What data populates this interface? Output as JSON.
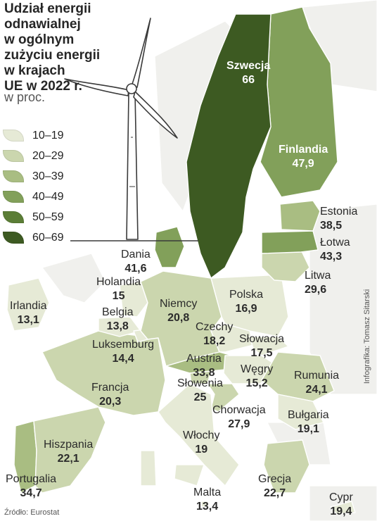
{
  "title": "Udział energii odnawialnej\nw ogólnym\nzużyciu energii\nw krajach\nUE w 2022 r.",
  "subtitle": "w proc.",
  "legend": [
    {
      "label": "10–19",
      "color": "#e6ead6"
    },
    {
      "label": "20–29",
      "color": "#cbd6ae"
    },
    {
      "label": "30–39",
      "color": "#a9bd82"
    },
    {
      "label": "40–49",
      "color": "#82a05a"
    },
    {
      "label": "50–59",
      "color": "#5b7d36"
    },
    {
      "label": "60–69",
      "color": "#3d5a22"
    }
  ],
  "countries": [
    {
      "name": "Szwecja",
      "value": "66"
    },
    {
      "name": "Finlandia",
      "value": "47,9"
    },
    {
      "name": "Estonia",
      "value": "38,5"
    },
    {
      "name": "Łotwa",
      "value": "43,3"
    },
    {
      "name": "Litwa",
      "value": "29,6"
    },
    {
      "name": "Dania",
      "value": "41,6"
    },
    {
      "name": "Holandia",
      "value": "15"
    },
    {
      "name": "Irlandia",
      "value": "13,1"
    },
    {
      "name": "Belgia",
      "value": "13,8"
    },
    {
      "name": "Luksemburg",
      "value": "14,4"
    },
    {
      "name": "Niemcy",
      "value": "20,8"
    },
    {
      "name": "Polska",
      "value": "16,9"
    },
    {
      "name": "Czechy",
      "value": "18,2"
    },
    {
      "name": "Słowacja",
      "value": "17,5"
    },
    {
      "name": "Austria",
      "value": "33,8"
    },
    {
      "name": "Słowenia",
      "value": "25"
    },
    {
      "name": "Węgry",
      "value": "15,2"
    },
    {
      "name": "Rumunia",
      "value": "24,1"
    },
    {
      "name": "Francja",
      "value": "20,3"
    },
    {
      "name": "Chorwacja",
      "value": "27,9"
    },
    {
      "name": "Bułgaria",
      "value": "19,1"
    },
    {
      "name": "Hiszpania",
      "value": "22,1"
    },
    {
      "name": "Włochy",
      "value": "19"
    },
    {
      "name": "Portugalia",
      "value": "34,7"
    },
    {
      "name": "Malta",
      "value": "13,4"
    },
    {
      "name": "Grecja",
      "value": "22,7"
    },
    {
      "name": "Cypr",
      "value": "19,4"
    }
  ],
  "credit": "Infografika: Tomasz Sitarski",
  "source": "Źródło: Eurostat"
}
